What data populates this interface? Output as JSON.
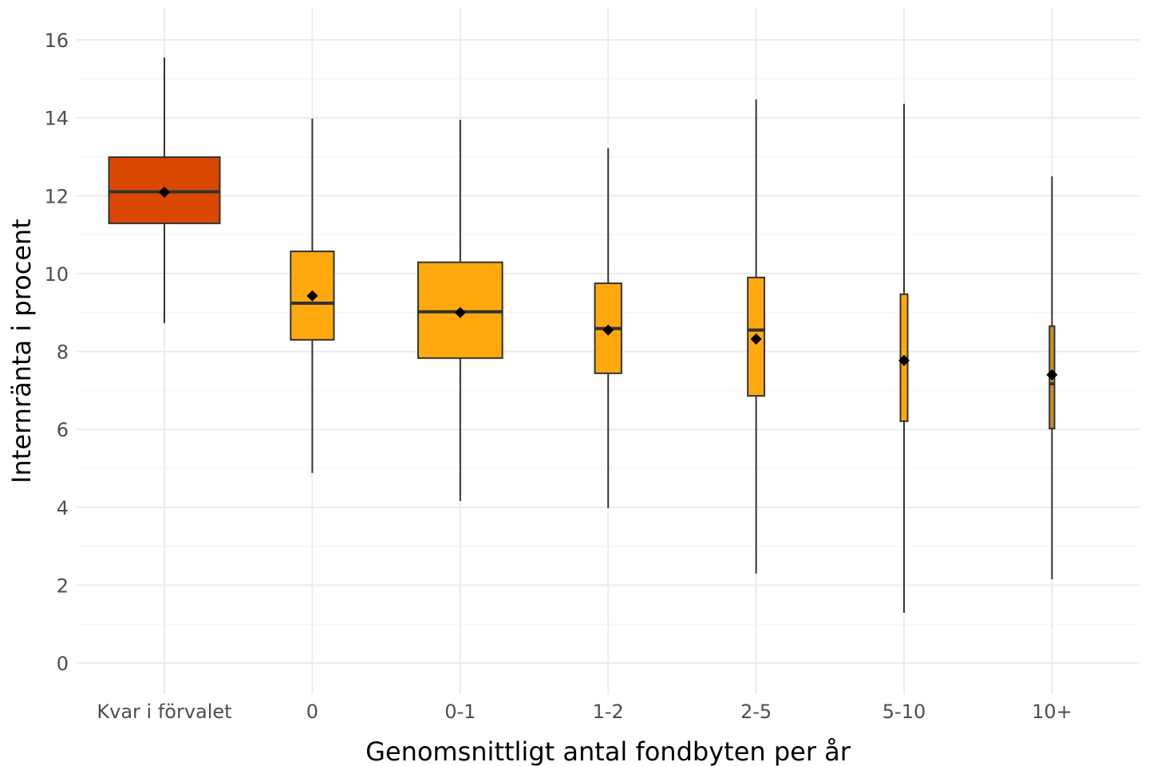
{
  "chart_data": {
    "type": "boxplot",
    "title": "",
    "xlabel": "Genomsnittligt antal fondbyten per år",
    "ylabel": "Internränta i procent",
    "ylim": [
      -0.8,
      16.8
    ],
    "yticks": [
      0,
      2,
      4,
      6,
      8,
      10,
      12,
      14,
      16
    ],
    "grid": true,
    "legend": "none",
    "categories": [
      "Kvar i förvalet",
      "0",
      "0-1",
      "1-2",
      "2-5",
      "5-10",
      "10+"
    ],
    "boxes": [
      {
        "category": "Kvar i förvalet",
        "whisker_low": 8.73,
        "q1": 11.29,
        "median": 12.1,
        "q3": 12.99,
        "whisker_high": 15.55,
        "mean": 12.09,
        "relative_width": 1.0,
        "color": "#D94801"
      },
      {
        "category": "0",
        "whisker_low": 4.88,
        "q1": 8.3,
        "median": 9.24,
        "q3": 10.57,
        "whisker_high": 13.98,
        "mean": 9.43,
        "relative_width": 0.39,
        "color": "#FFA90F"
      },
      {
        "category": "0-1",
        "whisker_low": 4.16,
        "q1": 7.83,
        "median": 9.02,
        "q3": 10.29,
        "whisker_high": 13.95,
        "mean": 9.0,
        "relative_width": 0.76,
        "color": "#FFA90F"
      },
      {
        "category": "1-2",
        "whisker_low": 3.98,
        "q1": 7.44,
        "median": 8.59,
        "q3": 9.75,
        "whisker_high": 13.22,
        "mean": 8.55,
        "relative_width": 0.24,
        "color": "#FFA90F"
      },
      {
        "category": "2-5",
        "whisker_low": 2.3,
        "q1": 6.86,
        "median": 8.55,
        "q3": 9.9,
        "whisker_high": 14.47,
        "mean": 8.32,
        "relative_width": 0.15,
        "color": "#FFA90F"
      },
      {
        "category": "5-10",
        "whisker_low": 1.29,
        "q1": 6.21,
        "median": 7.77,
        "q3": 9.47,
        "whisker_high": 14.36,
        "mean": 7.77,
        "relative_width": 0.065,
        "color": "#FFA90F"
      },
      {
        "category": "10+",
        "whisker_low": 2.15,
        "q1": 6.02,
        "median": 7.17,
        "q3": 8.65,
        "whisker_high": 12.5,
        "mean": 7.4,
        "relative_width": 0.045,
        "color": "#C8902E"
      }
    ]
  }
}
